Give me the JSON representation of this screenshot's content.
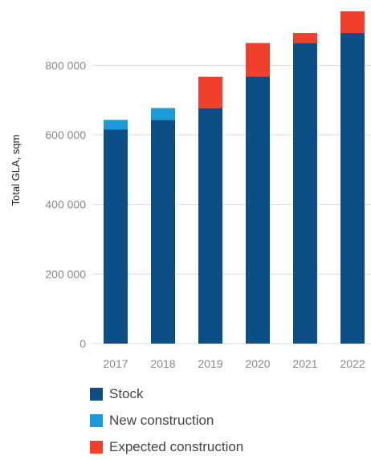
{
  "chart_data": {
    "type": "bar",
    "stacked": true,
    "title": "",
    "xlabel": "",
    "ylabel": "Total GLA, sqm",
    "categories": [
      "2017",
      "2018",
      "2019",
      "2020",
      "2021",
      "2022"
    ],
    "ylim": [
      0,
      960000
    ],
    "yticks": [
      0,
      200000,
      400000,
      600000,
      800000
    ],
    "ytick_labels": [
      "0",
      "200 000",
      "400 000",
      "600 000",
      "800 000"
    ],
    "grid": "horizontal",
    "legend_position": "bottom",
    "series": [
      {
        "name": "Stock",
        "color": "#0b4f86",
        "values": [
          615000,
          643000,
          677000,
          768000,
          864000,
          893000
        ]
      },
      {
        "name": "New construction",
        "color": "#1a9ad6",
        "values": [
          28000,
          34000,
          0,
          0,
          0,
          0
        ]
      },
      {
        "name": "Expected construction",
        "color": "#f0402c",
        "values": [
          0,
          0,
          90000,
          96000,
          29000,
          62000
        ]
      }
    ]
  }
}
